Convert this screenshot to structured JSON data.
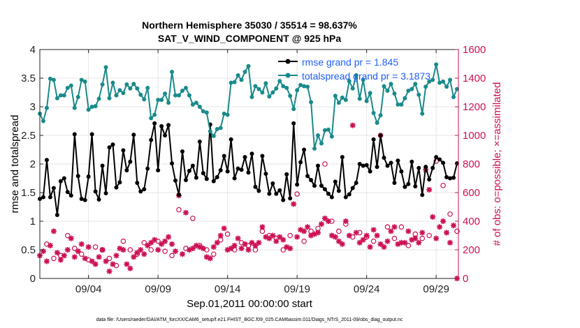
{
  "chart_data": {
    "type": "line",
    "title_line1": "Northern Hemisphere 35030 / 35514 = 98.637%",
    "title_line2": "SAT_V_WIND_COMPONENT @ 925 hPa",
    "xlabel": "Sep.01,2011 00:00:00 start",
    "ylabel_left": "rmse and totalspread",
    "ylabel_right": "# of obs: o=possible; ×=assimilated",
    "xlim": [
      0.5,
      30.6
    ],
    "ylim_left": [
      0,
      4
    ],
    "ylim_right": [
      0,
      1600
    ],
    "xticks": [
      {
        "x": 4,
        "label": "09/04"
      },
      {
        "x": 9,
        "label": "09/09"
      },
      {
        "x": 14,
        "label": "09/14"
      },
      {
        "x": 19,
        "label": "09/19"
      },
      {
        "x": 24,
        "label": "09/24"
      },
      {
        "x": 29,
        "label": "09/29"
      }
    ],
    "yticks_left": [
      {
        "v": 0,
        "label": "0"
      },
      {
        "v": 0.5,
        "label": "0.5"
      },
      {
        "v": 1,
        "label": "1"
      },
      {
        "v": 1.5,
        "label": "1.5"
      },
      {
        "v": 2,
        "label": "2"
      },
      {
        "v": 2.5,
        "label": "2.5"
      },
      {
        "v": 3,
        "label": "3"
      },
      {
        "v": 3.5,
        "label": "3.5"
      },
      {
        "v": 4,
        "label": "4"
      }
    ],
    "yticks_right": [
      {
        "v": 0,
        "label": "0"
      },
      {
        "v": 200,
        "label": "200"
      },
      {
        "v": 400,
        "label": "400"
      },
      {
        "v": 600,
        "label": "600"
      },
      {
        "v": 800,
        "label": "800"
      },
      {
        "v": 1000,
        "label": "1000"
      },
      {
        "v": 1200,
        "label": "1200"
      },
      {
        "v": 1400,
        "label": "1400"
      },
      {
        "v": 1600,
        "label": "1600"
      }
    ],
    "grid": true,
    "legend_position": "top-right",
    "series": [
      {
        "name": "rmse grand pr = 1.845",
        "color": "#000000",
        "axis": "left",
        "x": [
          0.5,
          0.75,
          1.0,
          1.25,
          1.5,
          1.75,
          2.0,
          2.25,
          2.5,
          2.75,
          3.0,
          3.25,
          3.5,
          3.75,
          4.0,
          4.25,
          4.5,
          4.75,
          5.0,
          5.25,
          5.5,
          5.75,
          6.0,
          6.25,
          6.5,
          6.75,
          7.0,
          7.25,
          7.5,
          7.75,
          8.0,
          8.25,
          8.5,
          8.75,
          9.0,
          9.25,
          9.5,
          9.75,
          10.0,
          10.25,
          10.5,
          10.75,
          11.0,
          11.25,
          11.5,
          11.75,
          12.0,
          12.25,
          12.5,
          12.75,
          13.0,
          13.25,
          13.5,
          13.75,
          14.0,
          14.25,
          14.5,
          14.75,
          15.0,
          15.25,
          15.5,
          15.75,
          16.0,
          16.25,
          16.5,
          16.75,
          17.0,
          17.25,
          17.5,
          17.75,
          18.0,
          18.25,
          18.5,
          18.75,
          19.0,
          19.25,
          19.5,
          19.75,
          20.0,
          20.25,
          20.5,
          20.75,
          21.0,
          21.25,
          21.5,
          21.75,
          22.0,
          22.25,
          22.5,
          22.75,
          23.0,
          23.25,
          23.5,
          23.75,
          24.0,
          24.25,
          24.5,
          24.75,
          25.0,
          25.25,
          25.5,
          25.75,
          26.0,
          26.25,
          26.5,
          26.75,
          27.0,
          27.25,
          27.5,
          27.75,
          28.0,
          28.25,
          28.5,
          28.75,
          29.0,
          29.25,
          29.5,
          29.75,
          30.0,
          30.25,
          30.5
        ],
        "values": [
          1.39,
          1.42,
          2.07,
          1.42,
          1.58,
          1.11,
          1.7,
          1.75,
          1.51,
          1.45,
          2.52,
          1.79,
          1.39,
          1.37,
          1.78,
          2.52,
          1.52,
          1.38,
          1.97,
          1.49,
          2.29,
          2.34,
          1.59,
          1.68,
          2.24,
          1.89,
          2.04,
          2.51,
          1.67,
          1.52,
          1.56,
          1.92,
          2.42,
          2.71,
          1.89,
          2.66,
          2.5,
          2.68,
          2.01,
          1.71,
          1.46,
          2.22,
          1.72,
          1.88,
          1.97,
          1.76,
          2.39,
          1.84,
          1.74,
          2.69,
          1.7,
          1.77,
          1.89,
          2.14,
          1.87,
          2.43,
          1.75,
          1.92,
          1.9,
          2.12,
          1.85,
          2.18,
          1.6,
          1.53,
          2.14,
          1.83,
          1.48,
          1.66,
          1.48,
          1.54,
          1.37,
          1.82,
          1.4,
          2.71,
          1.64,
          2.03,
          2.25,
          1.79,
          1.72,
          1.62,
          1.97,
          1.62,
          1.56,
          1.48,
          1.42,
          1.69,
          1.53,
          2.12,
          1.42,
          1.47,
          1.58,
          1.67,
          2.0,
          1.97,
          1.98,
          1.87,
          2.43,
          1.95,
          2.5,
          2.11,
          1.97,
          2.02,
          1.67,
          2.06,
          1.87,
          1.6,
          1.65,
          2.04,
          1.61,
          1.93,
          1.46,
          1.95,
          1.73,
          1.93,
          2.12,
          2.08,
          2.02,
          1.77,
          1.75,
          1.76,
          2.01
        ]
      },
      {
        "name": "totalspread grand pr = 3.1873",
        "color": "#1a8a8a",
        "axis": "left",
        "x": [
          0.5,
          0.75,
          1.0,
          1.25,
          1.5,
          1.75,
          2.0,
          2.25,
          2.5,
          2.75,
          3.0,
          3.25,
          3.5,
          3.75,
          4.0,
          4.25,
          4.5,
          4.75,
          5.0,
          5.25,
          5.5,
          5.75,
          6.0,
          6.25,
          6.5,
          6.75,
          7.0,
          7.25,
          7.5,
          7.75,
          8.0,
          8.25,
          8.5,
          8.75,
          9.0,
          9.25,
          9.5,
          9.75,
          10.0,
          10.25,
          10.5,
          10.75,
          11.0,
          11.25,
          11.5,
          11.75,
          12.0,
          12.25,
          12.5,
          12.75,
          13.0,
          13.25,
          13.5,
          13.75,
          14.0,
          14.25,
          14.5,
          14.75,
          15.0,
          15.25,
          15.5,
          15.75,
          16.0,
          16.25,
          16.5,
          16.75,
          17.0,
          17.25,
          17.5,
          17.75,
          18.0,
          18.25,
          18.5,
          18.75,
          19.0,
          19.25,
          19.5,
          19.75,
          20.0,
          20.25,
          20.5,
          20.75,
          21.0,
          21.25,
          21.5,
          21.75,
          22.0,
          22.25,
          22.5,
          22.75,
          23.0,
          23.25,
          23.5,
          23.75,
          24.0,
          24.25,
          24.5,
          24.75,
          25.0,
          25.25,
          25.5,
          25.75,
          26.0,
          26.25,
          26.5,
          26.75,
          27.0,
          27.25,
          27.5,
          27.75,
          28.0,
          28.25,
          28.5,
          28.75,
          29.0,
          29.25,
          29.5,
          29.75,
          30.0,
          30.25,
          30.5
        ],
        "values": [
          2.88,
          2.75,
          2.98,
          3.49,
          3.47,
          3.15,
          3.2,
          3.2,
          3.33,
          3.37,
          2.98,
          3.17,
          3.47,
          3.44,
          2.95,
          3.0,
          3.01,
          3.14,
          3.39,
          3.69,
          3.15,
          3.42,
          3.2,
          3.29,
          3.24,
          3.39,
          3.32,
          3.4,
          3.32,
          3.21,
          3.13,
          3.33,
          2.8,
          2.86,
          3.12,
          3.12,
          3.23,
          3.07,
          3.61,
          3.2,
          3.2,
          3.28,
          3.33,
          3.2,
          3.04,
          3.07,
          3.0,
          2.92,
          2.9,
          2.57,
          2.49,
          2.61,
          2.63,
          2.88,
          2.86,
          3.42,
          3.43,
          3.55,
          3.47,
          3.61,
          3.71,
          3.17,
          3.36,
          3.31,
          3.25,
          3.41,
          3.18,
          3.25,
          3.32,
          3.45,
          3.36,
          3.33,
          3.19,
          2.96,
          3.29,
          3.38,
          3.36,
          3.35,
          3.08,
          2.27,
          2.5,
          2.36,
          2.59,
          2.6,
          2.48,
          3.19,
          3.07,
          3.16,
          3.12,
          3.45,
          3.32,
          3.55,
          3.14,
          3.47,
          3.1,
          3.24,
          2.89,
          2.72,
          2.85,
          3.36,
          3.28,
          3.4,
          3.23,
          3.04,
          3.04,
          3.15,
          3.28,
          3.31,
          3.4,
          3.21,
          2.88,
          3.35,
          3.44,
          3.47,
          3.74,
          3.42,
          3.44,
          3.35,
          3.47,
          3.17,
          3.31
        ]
      },
      {
        "name": "assimilated",
        "color": "#cc1155",
        "axis": "right",
        "x": [
          0.5,
          0.75,
          1.0,
          1.25,
          1.5,
          1.75,
          2.0,
          2.25,
          2.5,
          2.75,
          3.0,
          3.25,
          3.5,
          3.75,
          4.0,
          4.25,
          4.5,
          4.75,
          5.0,
          5.25,
          5.5,
          5.75,
          6.0,
          6.25,
          6.5,
          6.75,
          7.0,
          7.25,
          7.5,
          7.75,
          8.0,
          8.25,
          8.5,
          8.75,
          9.0,
          9.25,
          9.5,
          9.75,
          10.0,
          10.25,
          10.5,
          10.75,
          11.0,
          11.25,
          11.5,
          11.75,
          12.0,
          12.25,
          12.5,
          12.75,
          13.0,
          13.25,
          13.5,
          13.75,
          14.0,
          14.25,
          14.5,
          14.75,
          15.0,
          15.25,
          15.5,
          15.75,
          16.0,
          16.25,
          16.5,
          16.75,
          17.0,
          17.25,
          17.5,
          17.75,
          18.0,
          18.25,
          18.5,
          18.75,
          19.0,
          19.25,
          19.5,
          19.75,
          20.0,
          20.25,
          20.5,
          20.75,
          21.0,
          21.25,
          21.5,
          21.75,
          22.0,
          22.25,
          22.5,
          22.75,
          23.0,
          23.25,
          23.5,
          23.75,
          24.0,
          24.25,
          24.5,
          24.75,
          25.0,
          25.25,
          25.5,
          25.75,
          26.0,
          26.25,
          26.5,
          26.75,
          27.0,
          27.25,
          27.5,
          27.75,
          28.0,
          28.25,
          28.5,
          28.75,
          29.0,
          29.25,
          29.5,
          29.75,
          30.0,
          30.25,
          30.5
        ],
        "values": [
          160,
          190,
          120,
          230,
          330,
          180,
          130,
          160,
          200,
          280,
          150,
          190,
          240,
          140,
          220,
          120,
          100,
          150,
          200,
          120,
          50,
          100,
          160,
          210,
          200,
          100,
          70,
          150,
          180,
          200,
          170,
          230,
          250,
          270,
          200,
          240,
          260,
          290,
          240,
          190,
          580,
          170,
          460,
          200,
          210,
          230,
          220,
          210,
          150,
          140,
          220,
          250,
          300,
          350,
          200,
          210,
          230,
          280,
          210,
          240,
          200,
          250,
          230,
          250,
          360,
          290,
          280,
          300,
          260,
          290,
          270,
          220,
          210,
          520,
          290,
          340,
          330,
          360,
          300,
          310,
          320,
          380,
          420,
          400,
          300,
          290,
          260,
          240,
          400,
          300,
          1070,
          320,
          250,
          270,
          300,
          220,
          340,
          300,
          240,
          220,
          260,
          330,
          360,
          240,
          250,
          250,
          330,
          270,
          280,
          250,
          320,
          760,
          620,
          430,
          280,
          360,
          400,
          320,
          250,
          370,
          0
        ]
      },
      {
        "name": "possible",
        "color": "#cc1155",
        "axis": "right",
        "x": [
          1.0,
          1.5,
          2.0,
          2.5,
          3.0,
          3.5,
          4.0,
          4.5,
          5.0,
          5.5,
          6.0,
          6.5,
          7.0,
          7.5,
          8.0,
          8.5,
          9.0,
          9.5,
          10.0,
          10.5,
          11.0,
          11.5,
          12.0,
          12.5,
          13.0,
          13.5,
          14.0,
          14.5,
          15.0,
          15.5,
          16.0,
          16.5,
          17.0,
          17.5,
          18.0,
          18.5,
          19.0,
          19.5,
          20.0,
          20.5,
          21.0,
          21.5,
          22.0,
          22.5,
          23.0,
          23.5,
          24.0,
          24.5,
          25.0,
          25.5,
          26.0,
          26.5,
          27.0,
          27.5,
          28.0,
          28.5,
          29.0,
          29.5,
          30.0,
          30.5
        ],
        "values": [
          240,
          140,
          160,
          300,
          210,
          170,
          130,
          220,
          200,
          140,
          90,
          260,
          200,
          170,
          250,
          200,
          260,
          190,
          160,
          480,
          210,
          420,
          230,
          200,
          170,
          270,
          310,
          200,
          250,
          230,
          200,
          330,
          300,
          280,
          200,
          300,
          590,
          260,
          330,
          350,
          800,
          400,
          330,
          380,
          290,
          320,
          290,
          260,
          1000,
          360,
          280,
          360,
          230,
          310,
          280,
          300,
          820,
          650,
          450,
          330
        ]
      }
    ],
    "footnote": "data file: /Users/raeder/DAI/ATM_forcXX/CAM6_setup/f.e21.FHIST_BGC.f09_025.CAM6assim.011/Diags_NTrS_2011-09/obs_diag_output.nc"
  }
}
